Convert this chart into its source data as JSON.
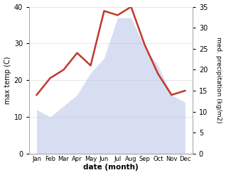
{
  "months": [
    "Jan",
    "Feb",
    "Mar",
    "Apr",
    "May",
    "Jun",
    "Jul",
    "Aug",
    "Sep",
    "Oct",
    "Nov",
    "Dec"
  ],
  "temperature": [
    12,
    10,
    13,
    16,
    22,
    26,
    37,
    37,
    29,
    24,
    16,
    14
  ],
  "precipitation": [
    14,
    18,
    20,
    24,
    21,
    34,
    33,
    35,
    26,
    19,
    14,
    15
  ],
  "temp_fill_color": "#b8c4e8",
  "precip_color": "#c0392b",
  "fill_alpha": 0.55,
  "temp_ylim": [
    0,
    40
  ],
  "precip_ylim": [
    0,
    35
  ],
  "temp_yticks": [
    0,
    10,
    20,
    30,
    40
  ],
  "precip_yticks": [
    0,
    5,
    10,
    15,
    20,
    25,
    30,
    35
  ],
  "xlabel": "date (month)",
  "ylabel_left": "max temp (C)",
  "ylabel_right": "med. precipitation (kg/m2)",
  "bg_color": "#ffffff",
  "spine_color": "#aaaaaa",
  "grid_color": "#dddddd"
}
